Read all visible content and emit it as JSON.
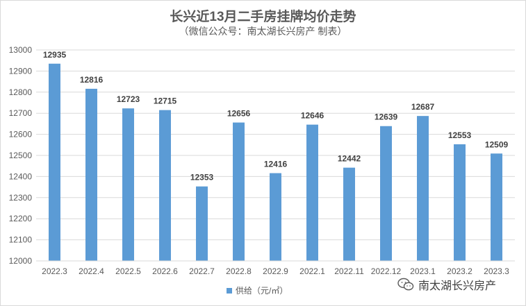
{
  "chart_data": {
    "type": "bar",
    "title": "长兴近13月二手房挂牌均价走势",
    "subtitle": "（微信公众号：南太湖长兴房产 制表）",
    "categories": [
      "2022.3",
      "2022.4",
      "2022.5",
      "2022.6",
      "2022.7",
      "2022.8",
      "2022.9",
      "2022.1",
      "2022.11",
      "2022.12",
      "2023.1",
      "2023.2",
      "2023.3"
    ],
    "series": [
      {
        "name": "供给（元/㎡）",
        "values": [
          12935,
          12816,
          12723,
          12715,
          12353,
          12656,
          12416,
          12646,
          12442,
          12639,
          12687,
          12553,
          12509
        ],
        "color": "#5b9bd5"
      }
    ],
    "ylim": [
      12000,
      13000
    ],
    "yticks": [
      12000,
      12100,
      12200,
      12300,
      12400,
      12500,
      12600,
      12700,
      12800,
      12900,
      13000
    ],
    "grid": true,
    "legend_position": "bottom"
  },
  "watermark": {
    "text": "南太湖长兴房产",
    "icon": "wechat-icon"
  }
}
